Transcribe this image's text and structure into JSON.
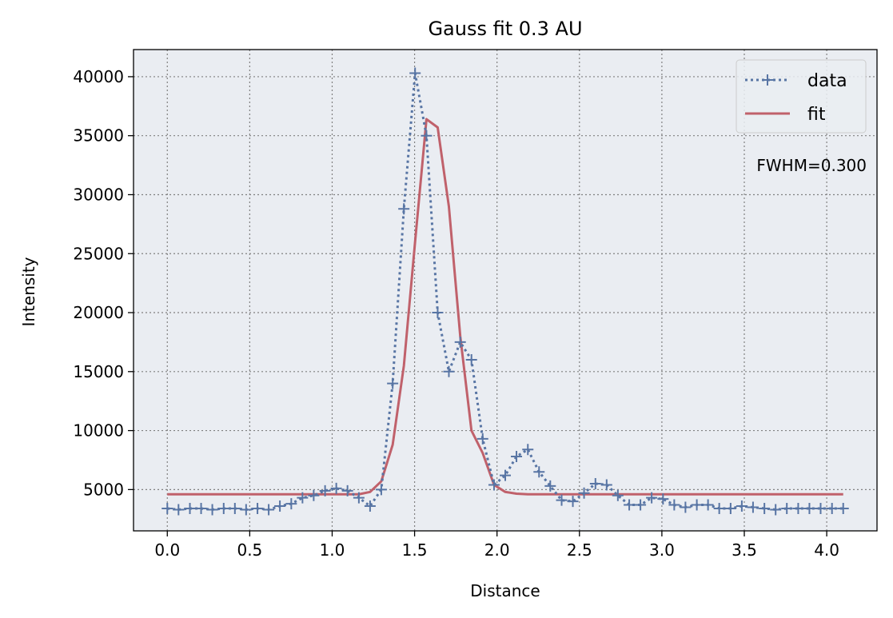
{
  "chart_data": {
    "type": "line",
    "title": "Gauss fit 0.3 AU",
    "xlabel": "Distance",
    "ylabel": "Intensity",
    "xlim": [
      -0.205,
      4.305
    ],
    "ylim": [
      1500,
      42300
    ],
    "xticks": [
      0.0,
      0.5,
      1.0,
      1.5,
      2.0,
      2.5,
      3.0,
      3.5,
      4.0
    ],
    "xtick_labels": [
      "0.0",
      "0.5",
      "1.0",
      "1.5",
      "2.0",
      "2.5",
      "3.0",
      "3.5",
      "4.0"
    ],
    "yticks": [
      5000,
      10000,
      15000,
      20000,
      25000,
      30000,
      35000,
      40000
    ],
    "ytick_labels": [
      "5000",
      "10000",
      "15000",
      "20000",
      "25000",
      "30000",
      "35000",
      "40000"
    ],
    "grid": true,
    "legend": "top-right",
    "annotation": "FWHM=0.300",
    "colors": {
      "data": "#5875a4",
      "fit": "#c0616b",
      "background": "#eaedf2",
      "grid": "#808080"
    },
    "series": [
      {
        "name": "data",
        "style": "dotted-plus",
        "x": [
          0.0,
          0.068,
          0.137,
          0.205,
          0.273,
          0.342,
          0.41,
          0.478,
          0.547,
          0.615,
          0.683,
          0.752,
          0.82,
          0.888,
          0.957,
          1.025,
          1.093,
          1.162,
          1.23,
          1.298,
          1.367,
          1.435,
          1.503,
          1.572,
          1.64,
          1.708,
          1.777,
          1.845,
          1.913,
          1.982,
          2.05,
          2.118,
          2.187,
          2.255,
          2.323,
          2.392,
          2.46,
          2.528,
          2.597,
          2.665,
          2.733,
          2.802,
          2.87,
          2.938,
          3.007,
          3.075,
          3.143,
          3.212,
          3.28,
          3.348,
          3.417,
          3.485,
          3.553,
          3.622,
          3.69,
          3.758,
          3.827,
          3.895,
          3.963,
          4.032,
          4.1
        ],
        "y": [
          3400,
          3300,
          3400,
          3400,
          3300,
          3400,
          3400,
          3300,
          3400,
          3300,
          3600,
          3800,
          4300,
          4500,
          4900,
          5100,
          4900,
          4300,
          3600,
          5000,
          14000,
          28800,
          40300,
          35000,
          20000,
          15000,
          17500,
          16000,
          9300,
          5400,
          6200,
          7800,
          8400,
          6500,
          5300,
          4100,
          4000,
          4700,
          5500,
          5400,
          4500,
          3700,
          3700,
          4300,
          4200,
          3700,
          3500,
          3700,
          3700,
          3400,
          3400,
          3600,
          3500,
          3400,
          3300,
          3400,
          3400,
          3400,
          3400,
          3400,
          3400
        ]
      },
      {
        "name": "fit",
        "style": "solid",
        "x": [
          0.0,
          1.162,
          1.23,
          1.298,
          1.367,
          1.435,
          1.503,
          1.572,
          1.64,
          1.708,
          1.777,
          1.845,
          1.913,
          1.982,
          2.05,
          2.118,
          2.187,
          4.1
        ],
        "y": [
          4600,
          4600,
          4800,
          5700,
          8800,
          15500,
          26000,
          36400,
          35700,
          29000,
          18000,
          10000,
          8100,
          5400,
          4800,
          4650,
          4600,
          4600
        ]
      }
    ]
  }
}
